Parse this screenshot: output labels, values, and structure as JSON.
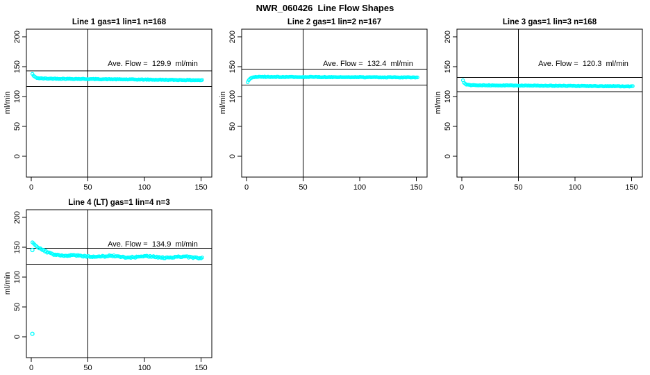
{
  "page_title": "NWR_060426  Line Flow Shapes",
  "colors": {
    "marker": "#00FFFF",
    "axis": "#000000",
    "background": "#FFFFFF",
    "text": "#000000"
  },
  "axes": {
    "ylabel": "ml/min",
    "x_ticks": [
      0,
      50,
      100,
      150
    ],
    "y_ticks": [
      0,
      50,
      100,
      150,
      200
    ],
    "xlim": [
      -4,
      161
    ],
    "ylim": [
      -35,
      213
    ],
    "grid": false
  },
  "chart_data": [
    {
      "type": "scatter",
      "title": "Line 1 gas=1 lin=1 n=168",
      "annotation": "Ave. Flow =  129.9  ml/min",
      "ave_flow_ml_min": 129.9,
      "n": 168,
      "gas": 1,
      "lin": 1,
      "ref_line_upper": 142.9,
      "ref_line_lower": 116.9,
      "vline_x": 50,
      "series": {
        "name": "flow-samples",
        "marker": "open-circle",
        "x_start": 1,
        "x_end": 151,
        "x_step": 1,
        "start_value": 138,
        "settle_value": 130.5,
        "end_value": 127.5,
        "decay_tau": 2,
        "noise_amp": 0.5,
        "wiggle_amp": 0,
        "outliers": []
      }
    },
    {
      "type": "scatter",
      "title": "Line 2 gas=1 lin=2 n=167",
      "annotation": "Ave. Flow =  132.4  ml/min",
      "ave_flow_ml_min": 132.4,
      "n": 167,
      "gas": 1,
      "lin": 2,
      "ref_line_upper": 145.6,
      "ref_line_lower": 119.2,
      "vline_x": 50,
      "series": {
        "name": "flow-samples",
        "marker": "open-circle",
        "x_start": 1,
        "x_end": 151,
        "x_step": 1,
        "start_value": 124,
        "settle_value": 133.2,
        "end_value": 132.2,
        "decay_tau": 2,
        "noise_amp": 0.5,
        "wiggle_amp": 0,
        "outliers": []
      }
    },
    {
      "type": "scatter",
      "title": "Line 3 gas=1 lin=3 n=168",
      "annotation": "Ave. Flow =  120.3  ml/min",
      "ave_flow_ml_min": 120.3,
      "n": 168,
      "gas": 1,
      "lin": 3,
      "ref_line_upper": 132.3,
      "ref_line_lower": 108.3,
      "vline_x": 50,
      "series": {
        "name": "flow-samples",
        "marker": "open-circle",
        "x_start": 1,
        "x_end": 151,
        "x_step": 1,
        "start_value": 127,
        "settle_value": 119.2,
        "end_value": 117.2,
        "decay_tau": 1.5,
        "noise_amp": 0.5,
        "wiggle_amp": 0,
        "outliers": []
      }
    },
    {
      "type": "scatter",
      "title": "Line 4 (LT) gas=1 lin=4 n=3",
      "annotation": "Ave. Flow =  134.9  ml/min",
      "ave_flow_ml_min": 134.9,
      "n": 3,
      "gas": 1,
      "lin": 4,
      "ref_line_upper": 148.4,
      "ref_line_lower": 121.4,
      "vline_x": 50,
      "series": {
        "name": "flow-samples",
        "marker": "open-circle",
        "x_start": 1,
        "x_end": 151,
        "x_step": 1,
        "start_value": 158,
        "settle_value": 136,
        "end_value": 133,
        "decay_tau": 10,
        "noise_amp": 1.2,
        "wiggle_amp": 1.0,
        "outliers": [
          [
            1,
            145.5
          ],
          [
            1,
            5
          ]
        ]
      }
    }
  ]
}
